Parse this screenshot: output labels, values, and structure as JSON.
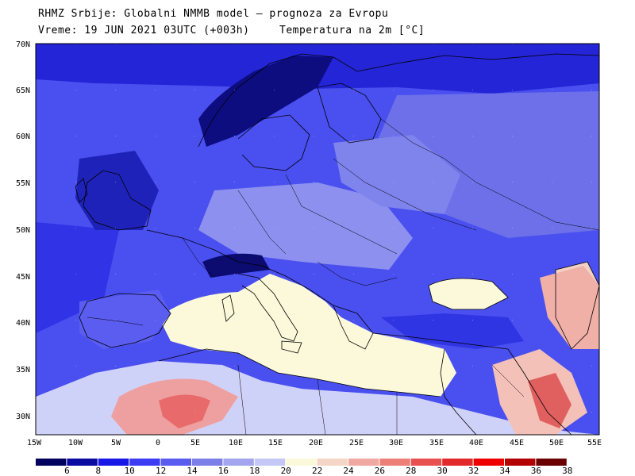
{
  "header": {
    "line1": "RHMZ Srbije: Globalni NMMB model — prognoza za Evropu",
    "line2": "Vreme: 19 JUN 2021 03UTC (+003h)",
    "parameter": "Temperatura na 2m [°C]"
  },
  "map": {
    "lat_labels": [
      "70N",
      "65N",
      "60N",
      "55N",
      "50N",
      "45N",
      "40N",
      "35N",
      "30N"
    ],
    "lon_labels": [
      "15W",
      "10W",
      "5W",
      "0",
      "5E",
      "10E",
      "15E",
      "20E",
      "25E",
      "30E",
      "35E",
      "40E",
      "45E",
      "50E",
      "55E"
    ],
    "lon_range": [
      -15,
      55
    ],
    "lat_range": [
      28,
      70
    ]
  },
  "colorbar": {
    "labels": [
      "6",
      "8",
      "10",
      "12",
      "14",
      "16",
      "18",
      "20",
      "22",
      "24",
      "26",
      "28",
      "30",
      "32",
      "34",
      "36",
      "38"
    ],
    "colors": [
      "#02025e",
      "#0b0ba0",
      "#1818e6",
      "#3c3cf5",
      "#5a5cf0",
      "#7d7fe8",
      "#a3a6ee",
      "#c5c8f7",
      "#fbf9d9",
      "#f5d5c5",
      "#f0a9a0",
      "#ec8078",
      "#e85050",
      "#e22a2a",
      "#ee0000",
      "#b30000",
      "#6a0000"
    ]
  }
}
